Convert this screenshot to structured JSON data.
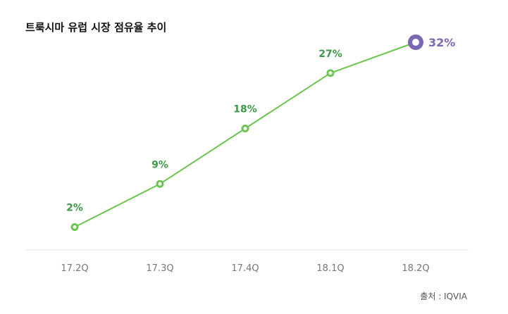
{
  "chart_data": {
    "type": "line",
    "title": "트룩시마 유럽 시장 점유율 추이",
    "categories": [
      "17.2Q",
      "17.3Q",
      "17.4Q",
      "18.1Q",
      "18.2Q"
    ],
    "series": [
      {
        "values": [
          2,
          9,
          18,
          27,
          32
        ],
        "data_labels": [
          "2%",
          "9%",
          "18%",
          "27%",
          "32%"
        ],
        "color": "#6cc54f"
      }
    ],
    "ylim": [
      0,
      32
    ],
    "grid": false,
    "highlight_color": "#7b68b5",
    "label_color": "#3a9a48",
    "tick_color": "#777777"
  },
  "source": "출처 : IQVIA"
}
